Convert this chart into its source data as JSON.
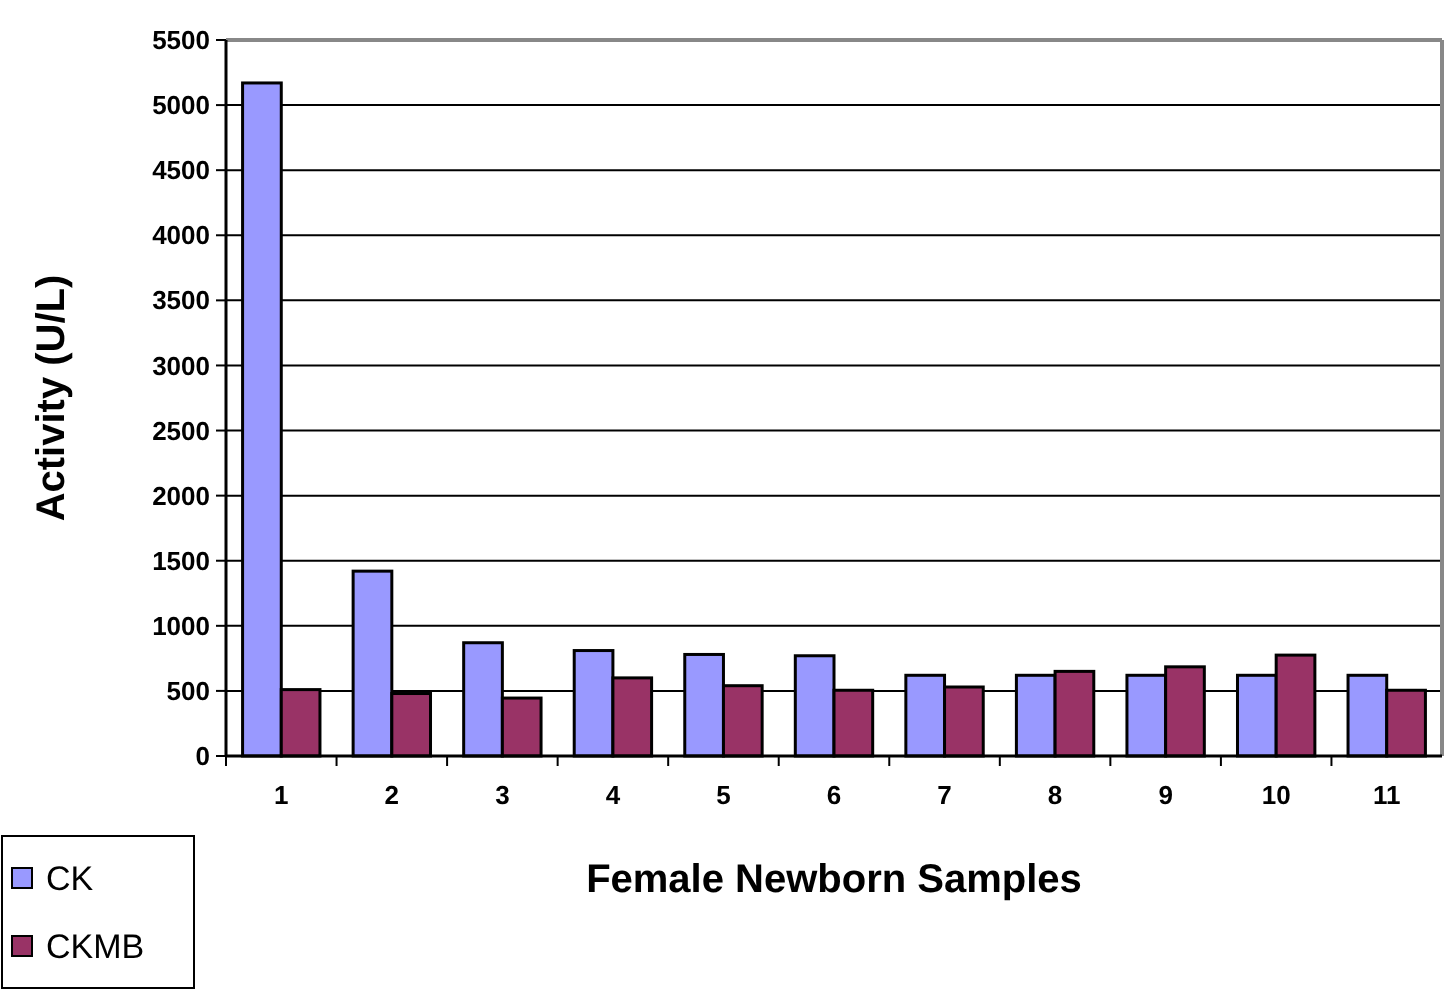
{
  "chart_data": {
    "type": "bar",
    "xlabel": "Female Newborn Samples",
    "ylabel": "Activity (U/L)",
    "categories": [
      "1",
      "2",
      "3",
      "4",
      "5",
      "6",
      "7",
      "8",
      "9",
      "10",
      "11"
    ],
    "series": [
      {
        "name": "CK",
        "color": "#9999ff",
        "values": [
          5170,
          1420,
          870,
          810,
          780,
          770,
          620,
          620,
          620,
          620,
          620
        ]
      },
      {
        "name": "CKMB",
        "color": "#993366",
        "values": [
          510,
          480,
          445,
          600,
          540,
          505,
          530,
          650,
          685,
          775,
          505
        ]
      }
    ],
    "ylim": [
      0,
      5500
    ],
    "yticks": [
      0,
      500,
      1000,
      1500,
      2000,
      2500,
      3000,
      3500,
      4000,
      4500,
      5000,
      5500
    ],
    "grid": "y",
    "legend": "bottom left"
  }
}
